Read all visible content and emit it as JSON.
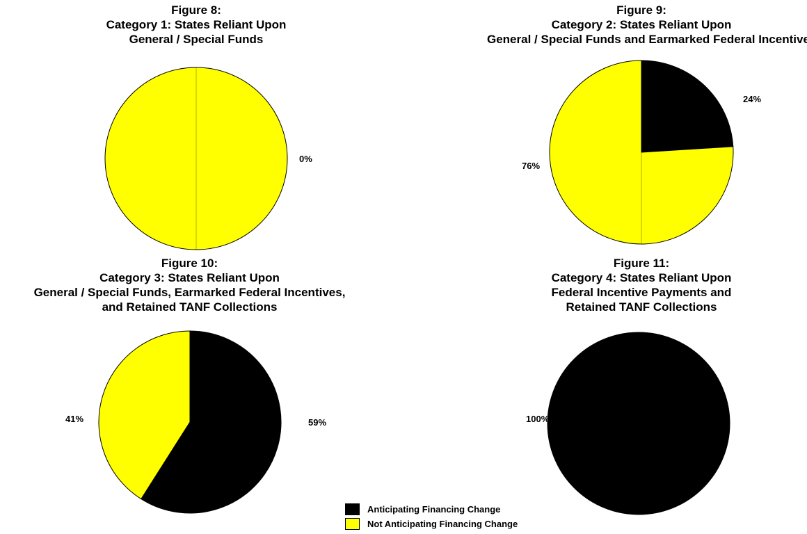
{
  "colors": {
    "anticipating": "#000000",
    "not_anticipating": "#ffff00",
    "outline": "#000000"
  },
  "legend": [
    {
      "label": "Anticipating Financing Change",
      "color": "#000000"
    },
    {
      "label": "Not Anticipating Financing Change",
      "color": "#ffff00"
    }
  ],
  "chart_data": [
    {
      "type": "pie",
      "title_lines": [
        "Figure 8:",
        "Category 1: States Reliant Upon",
        "General / Special Funds"
      ],
      "categories": [
        "Anticipating Financing Change",
        "Not Anticipating Financing Change"
      ],
      "values": [
        0,
        100
      ],
      "labels": [
        "0%",
        ""
      ]
    },
    {
      "type": "pie",
      "title_lines": [
        "Figure 9:",
        "Category 2: States Reliant Upon",
        "General / Special Funds and Earmarked Federal Incentives"
      ],
      "categories": [
        "Anticipating Financing Change",
        "Not Anticipating Financing Change"
      ],
      "values": [
        24,
        76
      ],
      "labels": [
        "24%",
        "76%"
      ]
    },
    {
      "type": "pie",
      "title_lines": [
        "Figure 10:",
        "Category 3: States Reliant Upon",
        "General / Special Funds,  Earmarked Federal Incentives,",
        "and Retained TANF Collections"
      ],
      "categories": [
        "Anticipating Financing Change",
        "Not Anticipating Financing Change"
      ],
      "values": [
        59,
        41
      ],
      "labels": [
        "59%",
        "41%"
      ]
    },
    {
      "type": "pie",
      "title_lines": [
        "Figure 11:",
        "Category 4: States Reliant Upon",
        "Federal Incentive Payments and",
        "Retained TANF Collections"
      ],
      "categories": [
        "Anticipating Financing Change",
        "Not Anticipating Financing Change"
      ],
      "values": [
        100,
        0
      ],
      "labels": [
        "100%",
        ""
      ]
    }
  ]
}
